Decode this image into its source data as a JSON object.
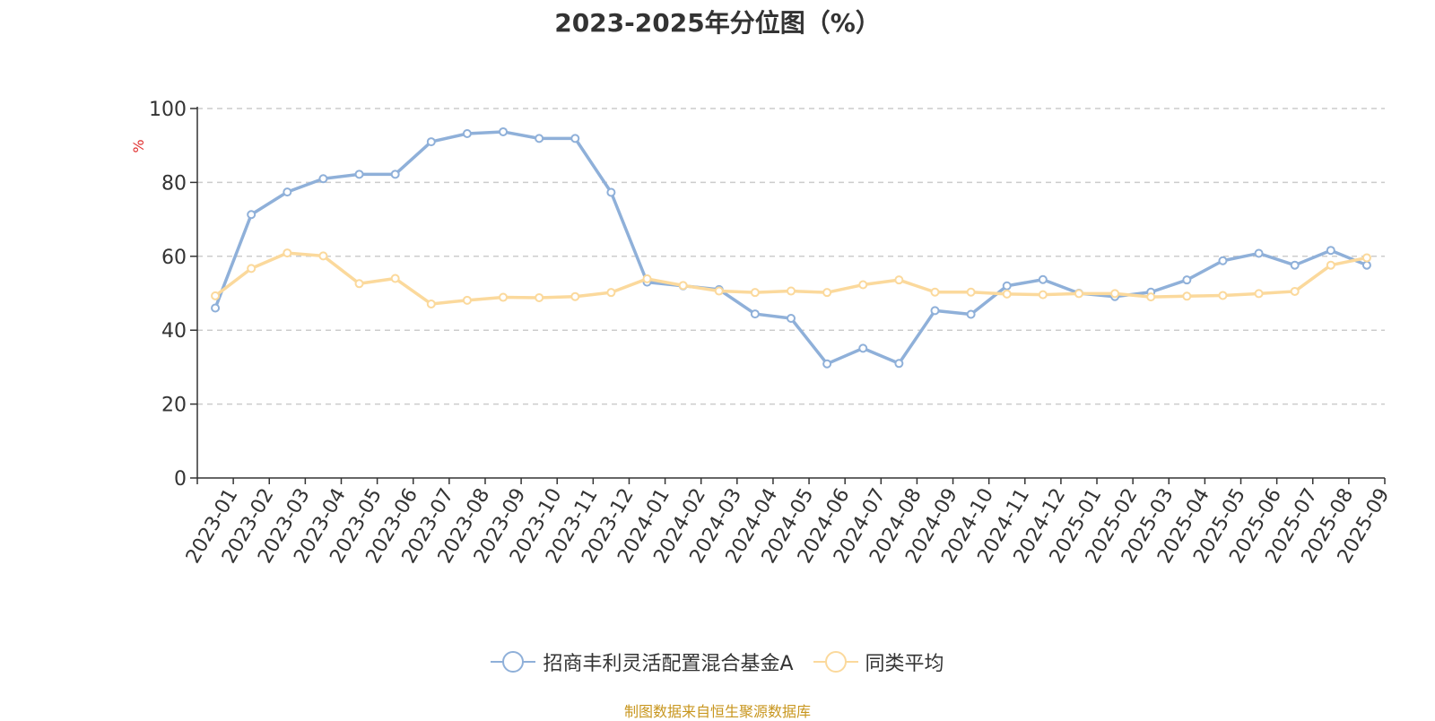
{
  "chart_data": {
    "type": "line",
    "title": "2023-2025年分位图（%）",
    "ylabel": "%",
    "ylim": [
      0,
      100
    ],
    "yticks": [
      0,
      20,
      40,
      60,
      80,
      100
    ],
    "grid": true,
    "legend_position": "bottom",
    "x": [
      "2023-01",
      "2023-02",
      "2023-03",
      "2023-04",
      "2023-05",
      "2023-06",
      "2023-07",
      "2023-08",
      "2023-09",
      "2023-10",
      "2023-11",
      "2023-12",
      "2024-01",
      "2024-02",
      "2024-03",
      "2024-04",
      "2024-05",
      "2024-06",
      "2024-07",
      "2024-08",
      "2024-09",
      "2024-10",
      "2024-11",
      "2024-12",
      "2025-01",
      "2025-02",
      "2025-03",
      "2025-04",
      "2025-05",
      "2025-06",
      "2025-07",
      "2025-08",
      "2025-09"
    ],
    "series": [
      {
        "name": "招商丰利灵活配置混合基金A",
        "color": "#8fb0d9",
        "values": [
          46,
          71.3,
          77.4,
          81,
          82.2,
          82.2,
          91,
          93.2,
          93.7,
          91.9,
          91.9,
          77.3,
          53,
          52,
          51,
          44.4,
          43.2,
          30.9,
          35.1,
          31,
          45.3,
          44.3,
          52,
          53.7,
          50,
          49.1,
          50.3,
          53.6,
          58.8,
          60.8,
          57.6,
          61.6,
          57.6
        ]
      },
      {
        "name": "同类平均",
        "color": "#fbd99c",
        "values": [
          49.3,
          56.7,
          60.9,
          60.1,
          52.6,
          54,
          47.1,
          48.1,
          48.9,
          48.8,
          49.1,
          50.2,
          53.9,
          52.1,
          50.6,
          50.2,
          50.6,
          50.2,
          52.3,
          53.6,
          50.3,
          50.3,
          49.8,
          49.6,
          49.9,
          49.9,
          49,
          49.2,
          49.4,
          49.9,
          50.5,
          57.6,
          59.6
        ]
      }
    ]
  },
  "source": "制图数据来自恒生聚源数据库"
}
